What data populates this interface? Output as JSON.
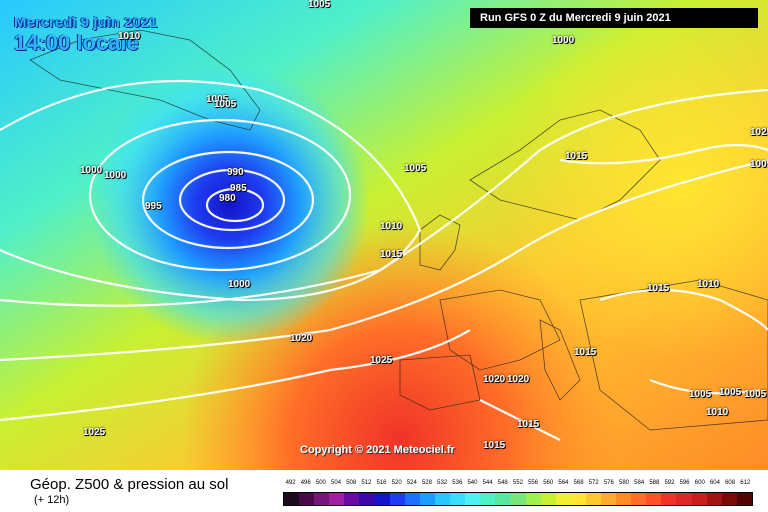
{
  "header": {
    "date": "Mercredi 9 juin 2021",
    "time": "14:00 locale",
    "run": "Run GFS 0 Z du Mercredi 9 juin 2021"
  },
  "copyright": "Copyright © 2021 Meteociel.fr",
  "footer": {
    "title": "Géop. Z500 & pression au sol",
    "subtitle": "(+ 12h)"
  },
  "isobars": [
    "1005",
    "1000",
    "1010",
    "1005",
    "1005",
    "1000",
    "1000",
    "990",
    "985",
    "980",
    "995",
    "1005",
    "1015",
    "1025",
    "1005",
    "1010",
    "1015",
    "1000",
    "1015",
    "1010",
    "1020",
    "1025",
    "1015",
    "1020",
    "1020",
    "1025",
    "1015",
    "1015",
    "1005",
    "1005",
    "1005",
    "1010"
  ],
  "legend": {
    "scale": [
      "492",
      "496",
      "500",
      "504",
      "508",
      "512",
      "516",
      "520",
      "524",
      "528",
      "532",
      "536",
      "540",
      "544",
      "548",
      "552",
      "556",
      "560",
      "564",
      "568",
      "572",
      "576",
      "580",
      "584",
      "588",
      "592",
      "596",
      "600",
      "604",
      "608",
      "612"
    ],
    "colors": [
      "#1e0a1e",
      "#4a0a4a",
      "#78147a",
      "#a01ea0",
      "#6a0aa0",
      "#3a0aa8",
      "#1414c8",
      "#1e3cf0",
      "#1e6eff",
      "#1e9cff",
      "#28c8ff",
      "#3cdcff",
      "#50f0f0",
      "#50f0c8",
      "#5ae6a0",
      "#78e678",
      "#a0f050",
      "#c8f032",
      "#f0f032",
      "#ffe632",
      "#ffc832",
      "#ffaa32",
      "#ff8c28",
      "#ff6e28",
      "#ff5028",
      "#f03228",
      "#dc2828",
      "#c81e1e",
      "#a01414",
      "#780a0a",
      "#500505"
    ]
  }
}
